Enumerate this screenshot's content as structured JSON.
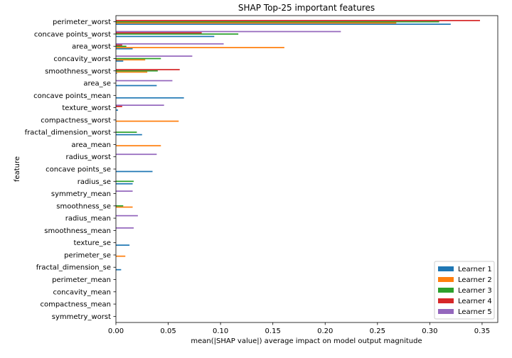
{
  "chart_data": {
    "type": "bar",
    "orientation": "horizontal",
    "title": "SHAP Top-25 important features",
    "xlabel": "mean(|SHAP value|) average impact on model output magnitude",
    "ylabel": "feature",
    "xlim": [
      0,
      0.365
    ],
    "xticks": [
      0.0,
      0.05,
      0.1,
      0.15,
      0.2,
      0.25,
      0.3,
      0.35
    ],
    "xtick_labels": [
      "0.00",
      "0.05",
      "0.10",
      "0.15",
      "0.20",
      "0.25",
      "0.30",
      "0.35"
    ],
    "legend_position": "bottom-right",
    "categories": [
      "perimeter_worst",
      "concave points_worst",
      "area_worst",
      "concavity_worst",
      "smoothness_worst",
      "area_se",
      "concave points_mean",
      "texture_worst",
      "compactness_worst",
      "fractal_dimension_worst",
      "area_mean",
      "radius_worst",
      "concave points_se",
      "radius_se",
      "symmetry_mean",
      "smoothness_se",
      "radius_mean",
      "smoothness_mean",
      "texture_se",
      "perimeter_se",
      "fractal_dimension_se",
      "perimeter_mean",
      "concavity_mean",
      "compactness_mean",
      "symmetry_worst"
    ],
    "series": [
      {
        "name": "Learner 1",
        "color": "#1f77b4",
        "values": [
          0.32,
          0.094,
          0.016,
          0.007,
          0.001,
          0.039,
          0.065,
          0.002,
          0.0,
          0.025,
          0.0,
          0.0,
          0.035,
          0.016,
          0.0,
          0.0,
          0.0,
          0.0,
          0.013,
          0.0,
          0.005,
          0.0,
          0.0,
          0.0,
          0.0
        ]
      },
      {
        "name": "Learner 2",
        "color": "#ff7f0e",
        "values": [
          0.268,
          0.0,
          0.161,
          0.028,
          0.03,
          0.0,
          0.0,
          0.0,
          0.06,
          0.0,
          0.043,
          0.0,
          0.0,
          0.0,
          0.0,
          0.016,
          0.0,
          0.0,
          0.0,
          0.009,
          0.0,
          0.0,
          0.0,
          0.0,
          0.0
        ]
      },
      {
        "name": "Learner 3",
        "color": "#2ca02c",
        "values": [
          0.309,
          0.117,
          0.01,
          0.043,
          0.04,
          0.0,
          0.0,
          0.0,
          0.0,
          0.02,
          0.0,
          0.0,
          0.0,
          0.017,
          0.0,
          0.007,
          0.0,
          0.0,
          0.0,
          0.0,
          0.0,
          0.0,
          0.0,
          0.0,
          0.0
        ]
      },
      {
        "name": "Learner 4",
        "color": "#d62728",
        "values": [
          0.348,
          0.082,
          0.006,
          0.0,
          0.061,
          0.0,
          0.0,
          0.006,
          0.0,
          0.0,
          0.0,
          0.0,
          0.0,
          0.0,
          0.0,
          0.0,
          0.0,
          0.0,
          0.0,
          0.0,
          0.0,
          0.0,
          0.0,
          0.0,
          0.0
        ]
      },
      {
        "name": "Learner 5",
        "color": "#9467bd",
        "values": [
          0.0,
          0.215,
          0.103,
          0.073,
          0.0,
          0.054,
          0.0,
          0.046,
          0.0,
          0.0,
          0.0,
          0.039,
          0.0,
          0.0,
          0.016,
          0.0,
          0.021,
          0.017,
          0.0,
          0.0,
          0.0,
          0.0,
          0.0,
          0.0,
          0.0
        ]
      }
    ]
  }
}
